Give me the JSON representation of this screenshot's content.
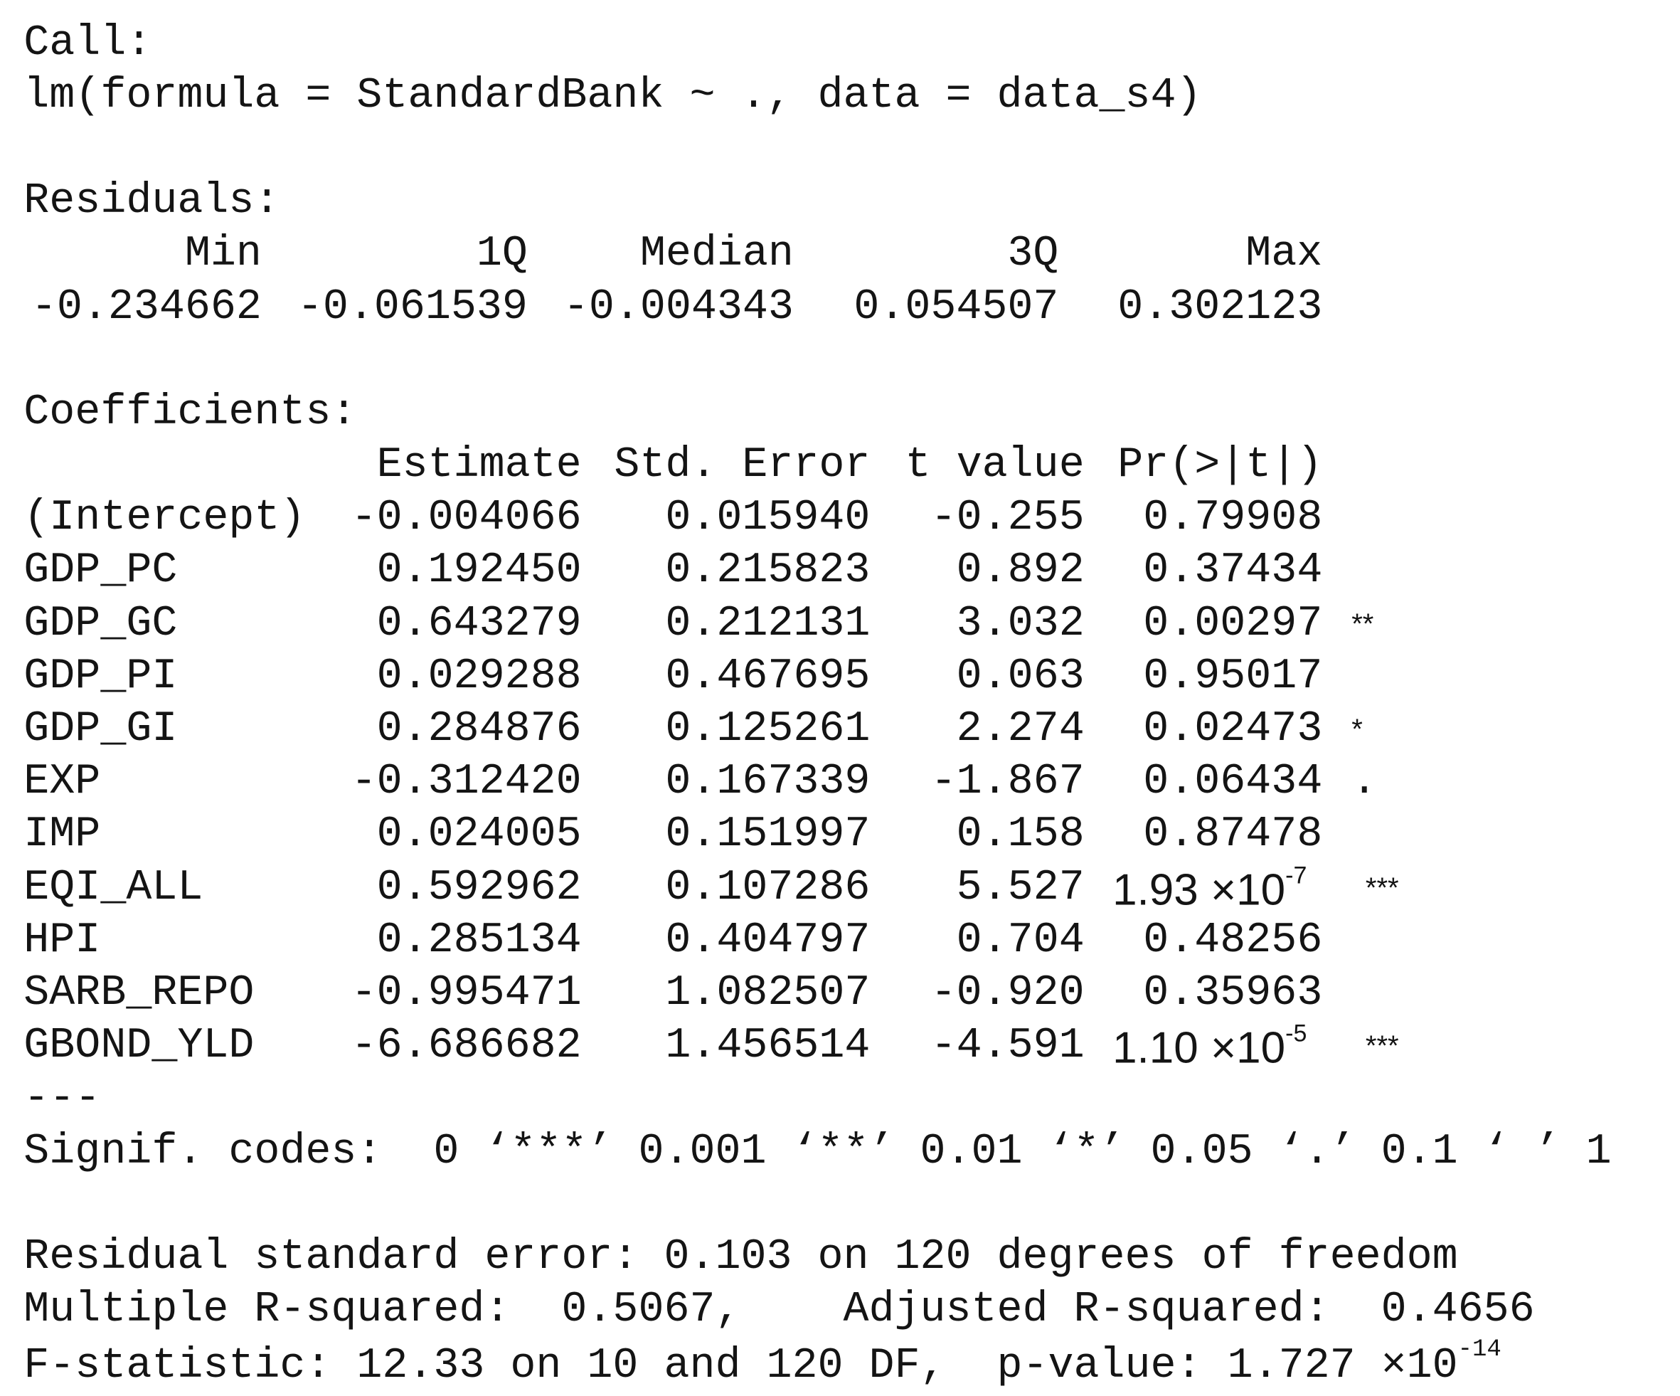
{
  "call": {
    "label": "Call:",
    "formula": "lm(formula = StandardBank ~ ., data = data_s4)"
  },
  "residuals": {
    "label": "Residuals:",
    "headers": [
      "Min",
      "1Q",
      "Median",
      "3Q",
      "Max"
    ],
    "values": [
      "-0.234662",
      "-0.061539",
      "-0.004343",
      "0.054507",
      "0.302123"
    ]
  },
  "coefficients": {
    "label": "Coefficients:",
    "headers": [
      "Estimate",
      "Std. Error",
      "t value",
      "Pr(>|t|)"
    ],
    "rows": [
      {
        "name": "(Intercept)",
        "estimate": "-0.004066",
        "std_error": "0.015940",
        "t_value": "-0.255",
        "p_value": "0.79908"
      },
      {
        "name": "GDP_PC",
        "estimate": "0.192450",
        "std_error": "0.215823",
        "t_value": "0.892",
        "p_value": "0.37434"
      },
      {
        "name": "GDP_GC",
        "estimate": "0.643279",
        "std_error": "0.212131",
        "t_value": "3.032",
        "p_value": "0.00297",
        "signif": "**"
      },
      {
        "name": "GDP_PI",
        "estimate": "0.029288",
        "std_error": "0.467695",
        "t_value": "0.063",
        "p_value": "0.95017"
      },
      {
        "name": "GDP_GI",
        "estimate": "0.284876",
        "std_error": "0.125261",
        "t_value": "2.274",
        "p_value": "0.02473",
        "signif": "*"
      },
      {
        "name": "EXP",
        "estimate": "-0.312420",
        "std_error": "0.167339",
        "t_value": "-1.867",
        "p_value": "0.06434",
        "signif": "."
      },
      {
        "name": "IMP",
        "estimate": "0.024005",
        "std_error": "0.151997",
        "t_value": "0.158",
        "p_value": "0.87478"
      },
      {
        "name": "EQI_ALL",
        "estimate": "0.592962",
        "std_error": "0.107286",
        "t_value": "5.527",
        "p_value": {
          "base": "1.93 ×10",
          "exponent": "-7"
        },
        "signif": "***"
      },
      {
        "name": "HPI",
        "estimate": "0.285134",
        "std_error": "0.404797",
        "t_value": "0.704",
        "p_value": "0.48256"
      },
      {
        "name": "SARB_REPO",
        "estimate": "-0.995471",
        "std_error": "1.082507",
        "t_value": "-0.920",
        "p_value": "0.35963"
      },
      {
        "name": "GBOND_YLD",
        "estimate": "-6.686682",
        "std_error": "1.456514",
        "t_value": "-4.591",
        "p_value": {
          "base": "1.10 ×10",
          "exponent": "-5"
        },
        "signif": "***"
      }
    ]
  },
  "separator": "---",
  "signif_codes": "Signif. codes:  0 ‘***’ 0.001 ‘**’ 0.01 ‘*’ 0.05 ‘.’ 0.1 ‘ ’ 1",
  "summary": {
    "residual_se": "Residual standard error: 0.103 on 120 degrees of freedom",
    "r_squared": "Multiple R-squared:  0.5067,\tAdjusted R-squared:  0.4656",
    "f_statistic": {
      "base": "F-statistic: 12.33 on 10 and 120 DF,  p-value: 1.727 ×10",
      "exponent": "-14"
    }
  }
}
